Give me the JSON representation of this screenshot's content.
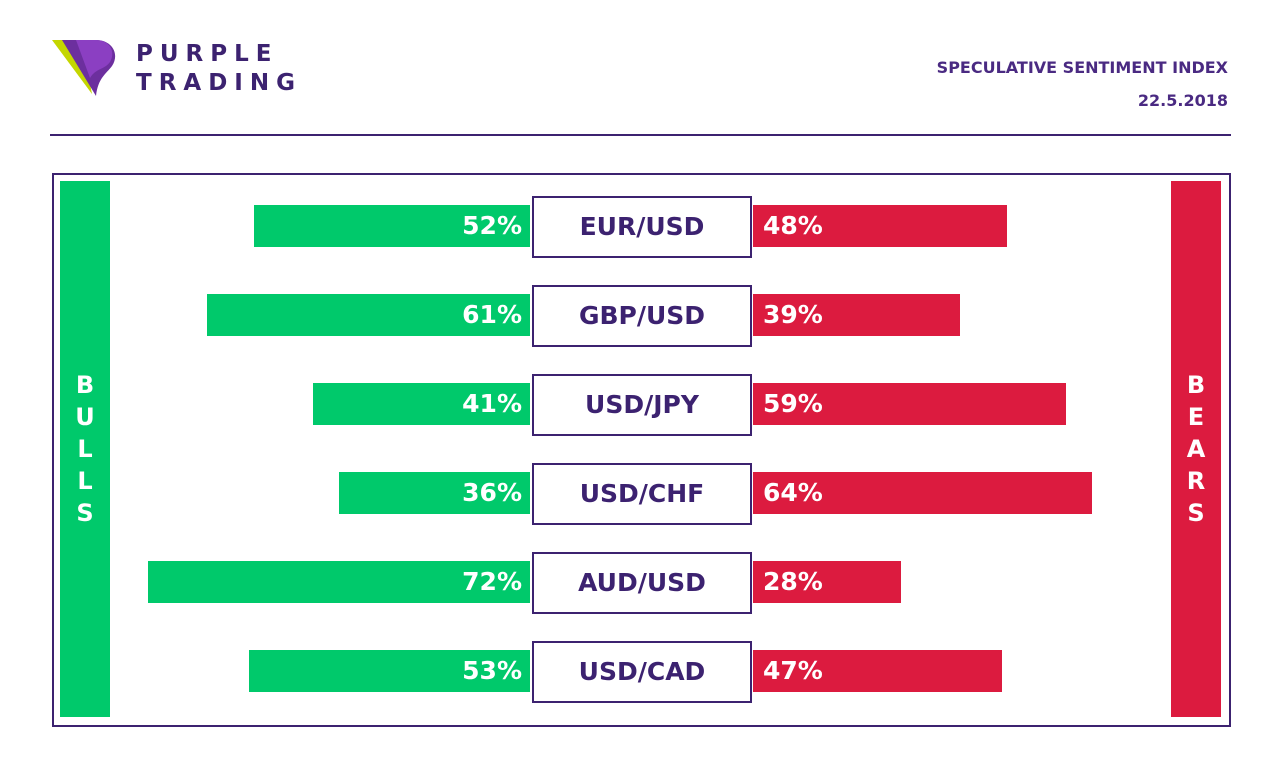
{
  "brand": {
    "line1": "PURPLE",
    "line2": "TRADING"
  },
  "header": {
    "title": "SPECULATIVE SENTIMENT INDEX",
    "date": "22.5.2018"
  },
  "colors": {
    "bull": "#00c96b",
    "bear": "#dc1b3f",
    "purple": "#3c2270"
  },
  "chart_data": {
    "type": "bar",
    "categories": [
      "EUR/USD",
      "GBP/USD",
      "USD/JPY",
      "USD/CHF",
      "AUD/USD",
      "USD/CAD"
    ],
    "series": [
      {
        "name": "BULLS",
        "values": [
          52,
          61,
          41,
          36,
          72,
          53
        ],
        "labels": [
          "52%",
          "61%",
          "41%",
          "36%",
          "72%",
          "53%"
        ]
      },
      {
        "name": "BEARS",
        "values": [
          48,
          39,
          59,
          64,
          28,
          47
        ],
        "labels": [
          "48%",
          "39%",
          "59%",
          "64%",
          "28%",
          "47%"
        ]
      }
    ],
    "side_labels": {
      "left": "BULLS",
      "right": "BEARS"
    },
    "ylim": [
      0,
      100
    ]
  }
}
